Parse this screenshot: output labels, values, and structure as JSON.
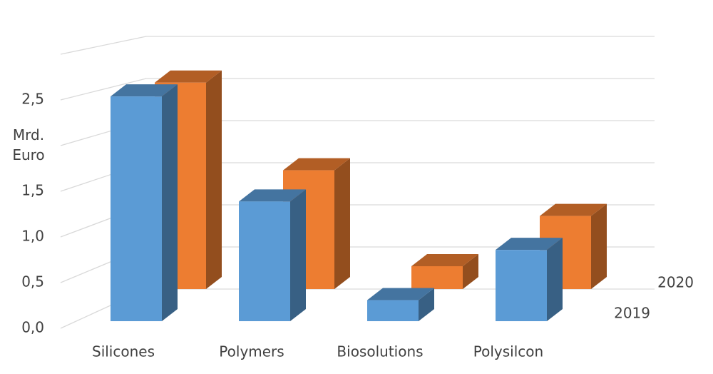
{
  "chart_data": {
    "type": "bar3d",
    "y_label": "Mrd. Euro",
    "categories": [
      "Silicones",
      "Polymers",
      "Biosolutions",
      "Polysilcon"
    ],
    "series": [
      {
        "name": "2019",
        "color": "#5b9bd5",
        "values": [
          2.46,
          1.31,
          0.23,
          0.78
        ]
      },
      {
        "name": "2020",
        "color": "#ed7d31",
        "values": [
          2.26,
          1.3,
          0.25,
          0.8
        ]
      }
    ],
    "ylim": [
      0,
      3
    ],
    "yticks": [
      {
        "value": 0,
        "label": "0,0"
      },
      {
        "value": 0.5,
        "label": "0,5"
      },
      {
        "value": 1,
        "label": "1,0"
      },
      {
        "value": 1.5,
        "label": "1,5"
      },
      {
        "value": 2,
        "label": null
      },
      {
        "value": 2.5,
        "label": "2,5"
      }
    ],
    "grid": true
  }
}
